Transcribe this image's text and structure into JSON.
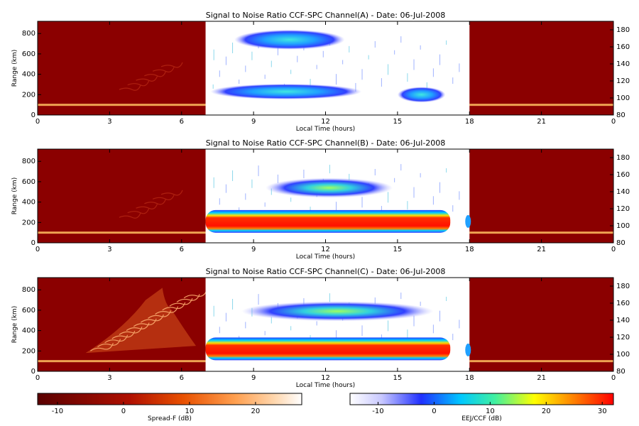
{
  "panels": [
    {
      "title": "Signal to Noise Ratio CCF-SPC Channel(A) - Date: 06-Jul-2008",
      "xlabel": "Local Time (hours)",
      "ylabel": "Range (km)",
      "x_ticks": [
        "0",
        "3",
        "6",
        "9",
        "12",
        "15",
        "18",
        "21",
        "0"
      ],
      "y_ticks": [
        "0",
        "200",
        "400",
        "600",
        "800"
      ],
      "y2_ticks": [
        "80",
        "100",
        "120",
        "140",
        "160",
        "180"
      ]
    },
    {
      "title": "Signal to Noise Ratio CCF-SPC Channel(B) - Date: 06-Jul-2008",
      "xlabel": "Local Time (hours)",
      "ylabel": "Range (km)",
      "x_ticks": [
        "0",
        "3",
        "6",
        "9",
        "12",
        "15",
        "18",
        "21",
        "0"
      ],
      "y_ticks": [
        "0",
        "200",
        "400",
        "600",
        "800"
      ],
      "y2_ticks": [
        "80",
        "100",
        "120",
        "140",
        "160",
        "180"
      ]
    },
    {
      "title": "Signal to Noise Ratio CCF-SPC Channel(C) - Date: 06-Jul-2008",
      "xlabel": "Local Time (hours)",
      "ylabel": "Range (km)",
      "x_ticks": [
        "0",
        "3",
        "6",
        "9",
        "12",
        "15",
        "18",
        "21",
        "0"
      ],
      "y_ticks": [
        "0",
        "200",
        "400",
        "600",
        "800"
      ],
      "y2_ticks": [
        "80",
        "100",
        "120",
        "140",
        "160",
        "180"
      ]
    }
  ],
  "colorbars": [
    {
      "label": "Spread-F (dB)",
      "ticks": [
        "-10",
        "0",
        "10",
        "20"
      ],
      "range": [
        -13,
        27
      ]
    },
    {
      "label": "EEJ/CCF (dB)",
      "ticks": [
        "-10",
        "0",
        "10",
        "20",
        "30"
      ],
      "range": [
        -15,
        32
      ]
    }
  ],
  "chart_data": {
    "type": "heatmap",
    "date": "06-Jul-2008",
    "x_range_hours": [
      0,
      24
    ],
    "y_range_km": [
      0,
      920
    ],
    "y2_range": [
      80,
      190
    ],
    "daytime_window_hours": [
      7,
      18
    ],
    "channels": [
      {
        "channel": "A",
        "night_layers_km": [
          100
        ],
        "day_echoes": [
          {
            "t_start": 8.2,
            "t_end": 12.8,
            "range_center_km": 740,
            "peak_db": 5
          },
          {
            "t_start": 7.2,
            "t_end": 13.5,
            "range_center_km": 230,
            "peak_db": 5
          },
          {
            "t_start": 15.0,
            "t_end": 17.0,
            "range_center_km": 200,
            "peak_db": 0
          }
        ]
      },
      {
        "channel": "B",
        "night_layers_km": [
          100
        ],
        "day_echoes": [
          {
            "t_start": 7.0,
            "t_end": 17.2,
            "range_center_km": 210,
            "peak_db": 30
          },
          {
            "t_start": 9.5,
            "t_end": 14.8,
            "range_center_km": 540,
            "peak_db": 5
          }
        ]
      },
      {
        "channel": "C",
        "night_layers_km": [
          100,
          250,
          450,
          650
        ],
        "day_echoes": [
          {
            "t_start": 7.0,
            "t_end": 17.2,
            "range_center_km": 220,
            "peak_db": 30
          },
          {
            "t_start": 8.5,
            "t_end": 16.5,
            "range_center_km": 590,
            "peak_db": 10
          }
        ]
      }
    ]
  },
  "colors": {
    "night_background": "#8b0000",
    "night_layer": "#ffc060",
    "day_background": "#ffffff"
  }
}
